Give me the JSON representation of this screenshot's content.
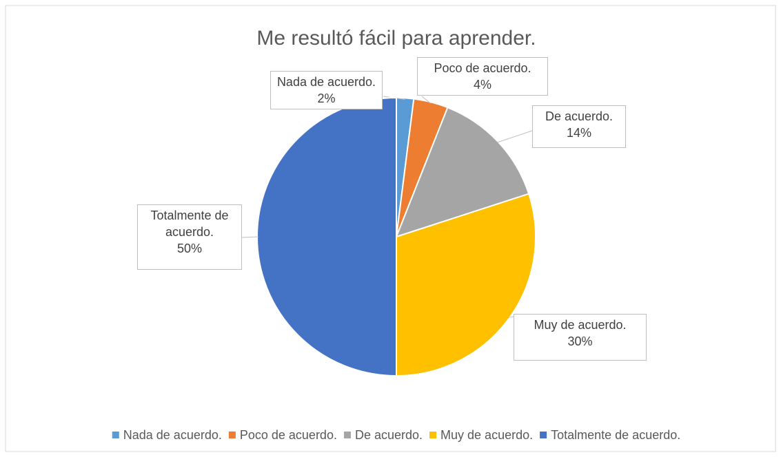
{
  "chart_data": {
    "type": "pie",
    "title": "Me resultó fácil para aprender.",
    "categories": [
      "Nada de acuerdo.",
      "Poco de acuerdo.",
      "De acuerdo.",
      "Muy de acuerdo.",
      "Totalmente de acuerdo."
    ],
    "values": [
      2,
      4,
      14,
      30,
      50
    ],
    "value_labels": [
      "2%",
      "4%",
      "14%",
      "30%",
      "50%"
    ],
    "colors": [
      "#5b9bd5",
      "#ed7d31",
      "#a5a5a5",
      "#ffc000",
      "#4472c4"
    ],
    "legend": "bottom"
  }
}
